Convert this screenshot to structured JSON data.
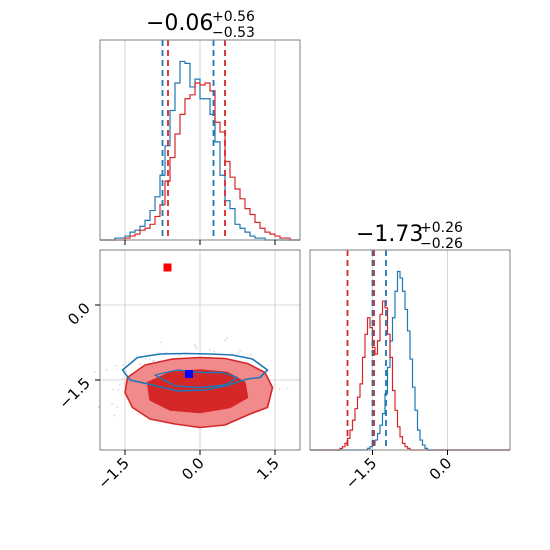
{
  "chart_data": {
    "type": "corner",
    "series": [
      {
        "name": "",
        "color": "#1f77b4"
      },
      {
        "name": "",
        "color": "#d62728"
      }
    ],
    "panels": [
      {
        "id": "hist_param1",
        "type": "histogram",
        "title": {
          "median": "−0.06",
          "upper": "+0.56",
          "lower": "−0.53"
        },
        "xlim": [
          -2.0,
          2.0
        ],
        "grid": true,
        "x_ticks": [
          -1.5,
          0.0,
          1.5
        ],
        "quantile_lines": {
          "blue": [
            -0.75,
            0.27
          ],
          "red": [
            -0.64,
            0.5
          ]
        },
        "bin_edges_start": -2.0,
        "bin_width": 0.1,
        "blue_counts": [
          0,
          0,
          0,
          1,
          1,
          2,
          4,
          5,
          7,
          10,
          15,
          22,
          33,
          48,
          66,
          80,
          91,
          90,
          78,
          82,
          72,
          72,
          64,
          50,
          33,
          20,
          16,
          8,
          6,
          4,
          2,
          1,
          1,
          0,
          0,
          0,
          0,
          0,
          0,
          0
        ],
        "red_counts": [
          0,
          0,
          0,
          0,
          0,
          1,
          2,
          3,
          5,
          6,
          8,
          12,
          18,
          30,
          42,
          54,
          64,
          72,
          74,
          80,
          79,
          80,
          76,
          60,
          55,
          40,
          32,
          26,
          21,
          16,
          13,
          9,
          6,
          4,
          3,
          2,
          1,
          1,
          0,
          0
        ]
      },
      {
        "id": "hist_param2",
        "type": "histogram",
        "title": {
          "median": "−1.73",
          "upper": "+0.26",
          "lower": "−0.26"
        },
        "xlim": [
          -2.75,
          1.25
        ],
        "grid": true,
        "x_ticks": [
          -1.5,
          0.0
        ],
        "x_tick_labels": [
          "−1.5",
          "0.0"
        ],
        "quantile_lines": {
          "blue": [
            -1.5,
            -1.23
          ],
          "red": [
            -2.0,
            -1.47
          ]
        },
        "bin_edges_start": -2.75,
        "bin_width": 0.05,
        "blue_counts": [
          0,
          0,
          0,
          0,
          0,
          0,
          0,
          0,
          0,
          0,
          0,
          0,
          0,
          0,
          0,
          0,
          0,
          0,
          0,
          0,
          0,
          0,
          0,
          1,
          2,
          3,
          6,
          10,
          15,
          22,
          34,
          50,
          66,
          80,
          96,
          108,
          104,
          96,
          85,
          72,
          55,
          38,
          24,
          12,
          6,
          3,
          1,
          0,
          0,
          0,
          0,
          0,
          0,
          0,
          0,
          0,
          0,
          0,
          0,
          0,
          0,
          0,
          0,
          0,
          0,
          0,
          0,
          0,
          0,
          0,
          0,
          0,
          0,
          0,
          0,
          0,
          0,
          0,
          0,
          0
        ],
        "red_counts": [
          0,
          0,
          0,
          0,
          0,
          0,
          0,
          0,
          0,
          0,
          0,
          0,
          1,
          2,
          4,
          7,
          12,
          18,
          25,
          32,
          40,
          56,
          70,
          80,
          74,
          62,
          58,
          66,
          82,
          90,
          86,
          70,
          56,
          36,
          24,
          14,
          8,
          4,
          2,
          1,
          0,
          0,
          0,
          0,
          0,
          0,
          0,
          0,
          0,
          0,
          0,
          0,
          0,
          0,
          0,
          0,
          0,
          0,
          0,
          0,
          0,
          0,
          0,
          0,
          0,
          0,
          0,
          0,
          0,
          0,
          0,
          0,
          0,
          0,
          0,
          0,
          0,
          0,
          0,
          0
        ]
      },
      {
        "id": "scatter_2d",
        "type": "contour",
        "xlim": [
          -2.0,
          2.0
        ],
        "ylim": [
          -2.9,
          1.1
        ],
        "grid": true,
        "x_ticks": [
          -1.5,
          0.0,
          1.5
        ],
        "x_tick_labels": [
          "−1.5",
          "0.0",
          "1.5"
        ],
        "y_ticks": [
          0.0,
          -1.5
        ],
        "y_tick_labels": [
          "0.0",
          "−1.5"
        ],
        "markers": [
          {
            "x": -0.65,
            "y": 0.75,
            "color": "#ff0000",
            "shape": "square"
          },
          {
            "x": -0.22,
            "y": -1.38,
            "color": "#0000ff",
            "shape": "square"
          }
        ],
        "blue_contour_outer": [
          [
            -1.55,
            -1.3
          ],
          [
            -1.25,
            -1.05
          ],
          [
            -0.8,
            -0.98
          ],
          [
            -0.3,
            -0.97
          ],
          [
            0.2,
            -0.98
          ],
          [
            0.65,
            -1.0
          ],
          [
            1.05,
            -1.08
          ],
          [
            1.35,
            -1.3
          ],
          [
            1.2,
            -1.45
          ],
          [
            0.95,
            -1.48
          ],
          [
            0.5,
            -1.62
          ],
          [
            0.1,
            -1.7
          ],
          [
            -0.45,
            -1.72
          ],
          [
            -0.95,
            -1.6
          ],
          [
            -1.4,
            -1.5
          ]
        ],
        "blue_contour_inner": [
          [
            -0.9,
            -1.4
          ],
          [
            -0.45,
            -1.3
          ],
          [
            0.0,
            -1.35
          ],
          [
            0.45,
            -1.35
          ],
          [
            0.75,
            -1.45
          ],
          [
            0.5,
            -1.6
          ],
          [
            0.0,
            -1.65
          ],
          [
            -0.5,
            -1.62
          ]
        ],
        "red_contour_outer": [
          [
            -1.45,
            -1.45
          ],
          [
            -1.1,
            -1.2
          ],
          [
            -0.55,
            -1.08
          ],
          [
            0.0,
            -1.05
          ],
          [
            0.5,
            -1.07
          ],
          [
            0.95,
            -1.17
          ],
          [
            1.3,
            -1.35
          ],
          [
            1.45,
            -1.65
          ],
          [
            1.35,
            -2.05
          ],
          [
            1.0,
            -2.18
          ],
          [
            0.5,
            -2.4
          ],
          [
            0.0,
            -2.45
          ],
          [
            -0.5,
            -2.38
          ],
          [
            -1.0,
            -2.28
          ],
          [
            -1.35,
            -2.05
          ],
          [
            -1.5,
            -1.75
          ]
        ],
        "red_contour_inner": [
          [
            -1.05,
            -1.55
          ],
          [
            -0.6,
            -1.35
          ],
          [
            0.0,
            -1.3
          ],
          [
            0.55,
            -1.35
          ],
          [
            0.9,
            -1.55
          ],
          [
            0.95,
            -1.85
          ],
          [
            0.6,
            -2.05
          ],
          [
            0.0,
            -2.15
          ],
          [
            -0.6,
            -2.1
          ],
          [
            -1.0,
            -1.9
          ]
        ]
      }
    ]
  }
}
